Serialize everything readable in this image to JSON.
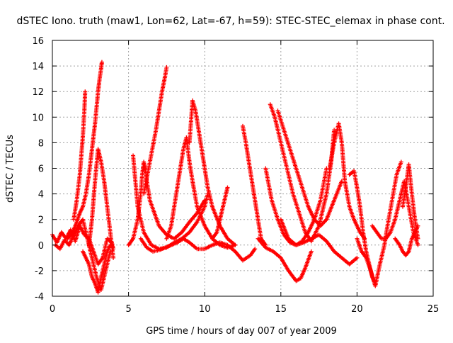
{
  "chart_data": {
    "type": "scatter",
    "title": "dSTEC Iono. truth (maw1, Lon=62, Lat=-67, h=59): STEC-STEC_elemax in phase cont.",
    "xlabel": "GPS time / hours of day 007 of year 2009",
    "ylabel": "dSTEC  / TECUs",
    "xlim": [
      0,
      25
    ],
    "ylim": [
      -4,
      16
    ],
    "x_ticks": [
      0,
      5,
      10,
      15,
      20,
      25
    ],
    "y_ticks": [
      -4,
      -2,
      0,
      2,
      4,
      6,
      8,
      10,
      12,
      14,
      16
    ],
    "grid": true,
    "marker": "+",
    "color": "#ff0000",
    "series": [
      {
        "x": [
          0.0,
          0.3,
          0.6,
          0.9,
          1.2,
          1.5,
          1.8,
          2.1,
          2.4,
          2.7,
          3.0,
          3.3,
          3.6,
          3.9,
          4.0
        ],
        "y": [
          0.8,
          0.2,
          1.0,
          0.5,
          1.2,
          0.3,
          1.5,
          0.8,
          0.5,
          -0.5,
          -1.5,
          -1.0,
          0.5,
          0.2,
          -0.3
        ]
      },
      {
        "x": [
          0.2,
          0.5,
          0.8,
          1.1,
          1.4,
          1.7,
          2.0,
          2.3,
          2.6,
          2.9,
          3.2,
          3.5,
          3.8
        ],
        "y": [
          0.0,
          -0.3,
          0.4,
          0.0,
          0.8,
          1.5,
          2.0,
          0.5,
          -1.0,
          -2.5,
          -3.5,
          -2.0,
          -0.5
        ]
      },
      {
        "x": [
          1.4,
          1.6,
          1.8,
          1.9,
          2.0,
          2.1,
          2.15
        ],
        "y": [
          2.0,
          3.5,
          5.5,
          7.0,
          8.5,
          10.5,
          12.0
        ]
      },
      {
        "x": [
          1.0,
          1.2,
          1.4,
          1.6,
          1.8,
          2.0,
          2.2,
          2.4,
          2.6,
          2.8,
          3.0,
          3.1,
          3.2,
          3.25
        ],
        "y": [
          0.5,
          0.8,
          1.2,
          1.8,
          2.5,
          3.0,
          4.0,
          5.5,
          7.5,
          9.5,
          12.0,
          13.0,
          13.8,
          14.3
        ]
      },
      {
        "x": [
          2.4,
          2.6,
          2.8,
          3.0,
          3.2,
          3.4,
          3.6,
          3.8,
          4.0
        ],
        "y": [
          0.0,
          2.0,
          5.0,
          7.5,
          6.5,
          5.0,
          3.0,
          1.0,
          -1.0
        ]
      },
      {
        "x": [
          2.0,
          2.2,
          2.4,
          2.6,
          2.8,
          3.0,
          3.2,
          3.4,
          3.6,
          3.8
        ],
        "y": [
          -0.5,
          -1.0,
          -1.5,
          -2.5,
          -3.0,
          -3.7,
          -2.5,
          -1.5,
          -0.5,
          0.0
        ]
      },
      {
        "x": [
          5.0,
          5.3,
          5.6,
          5.8,
          5.9,
          6.0,
          6.1,
          6.2,
          6.4,
          6.7,
          7.0,
          7.5,
          8.0,
          8.5,
          9.0,
          9.5,
          10.0
        ],
        "y": [
          0.0,
          0.5,
          2.0,
          4.0,
          5.5,
          6.5,
          6.0,
          5.0,
          3.5,
          2.5,
          1.5,
          0.8,
          0.5,
          1.0,
          1.8,
          2.5,
          3.5
        ]
      },
      {
        "x": [
          5.3,
          5.6,
          6.0,
          6.5,
          7.0,
          7.5,
          8.0,
          8.5,
          9.0,
          9.5,
          10.0,
          10.2
        ],
        "y": [
          7.0,
          3.0,
          1.0,
          0.0,
          -0.3,
          -0.2,
          0.2,
          0.5,
          1.0,
          1.8,
          3.0,
          4.0
        ]
      },
      {
        "x": [
          6.0,
          6.4,
          6.8,
          7.0,
          7.2,
          7.4,
          7.5
        ],
        "y": [
          4.0,
          6.5,
          9.0,
          10.5,
          12.0,
          13.2,
          13.9
        ]
      },
      {
        "x": [
          5.8,
          6.2,
          6.6,
          7.0,
          7.4,
          7.8,
          8.2,
          8.6,
          9.0,
          9.5,
          10.0,
          10.5,
          11.0,
          11.5,
          12.0,
          12.5,
          13.0,
          13.3
        ],
        "y": [
          0.5,
          -0.2,
          -0.5,
          -0.4,
          -0.2,
          0.0,
          0.2,
          0.5,
          0.2,
          -0.3,
          -0.3,
          0.0,
          0.2,
          0.0,
          -0.5,
          -1.2,
          -0.8,
          -0.3
        ]
      },
      {
        "x": [
          7.5,
          7.8,
          8.0,
          8.2,
          8.4,
          8.6,
          8.8,
          9.0,
          9.2,
          9.5,
          10.0,
          10.5,
          11.0,
          11.5,
          12.0
        ],
        "y": [
          0.5,
          1.5,
          3.0,
          4.5,
          6.0,
          7.5,
          8.4,
          6.5,
          5.0,
          3.0,
          1.5,
          0.5,
          0.0,
          -0.2,
          0.0
        ]
      },
      {
        "x": [
          9.0,
          9.2,
          9.4,
          9.6,
          9.8,
          10.0,
          10.2,
          10.5,
          11.0,
          11.5,
          12.0
        ],
        "y": [
          8.0,
          11.3,
          10.5,
          9.0,
          7.5,
          6.0,
          4.5,
          3.0,
          1.5,
          0.5,
          0.0
        ]
      },
      {
        "x": [
          10.5,
          10.8,
          11.0,
          11.2,
          11.4,
          11.5
        ],
        "y": [
          0.5,
          1.0,
          2.0,
          3.0,
          4.0,
          4.5
        ]
      },
      {
        "x": [
          12.5,
          12.7,
          12.9,
          13.1,
          13.3,
          13.5,
          13.7,
          14.0
        ],
        "y": [
          9.3,
          8.0,
          6.5,
          5.0,
          3.5,
          2.0,
          0.5,
          0.0
        ]
      },
      {
        "x": [
          13.5,
          14.0,
          14.5,
          15.0,
          15.5,
          16.0,
          16.3,
          16.6,
          17.0
        ],
        "y": [
          0.5,
          -0.2,
          -0.5,
          -1.0,
          -2.0,
          -2.8,
          -2.6,
          -1.8,
          -0.5
        ]
      },
      {
        "x": [
          14.0,
          14.4,
          14.8,
          15.2,
          15.6,
          16.0,
          16.4,
          16.8,
          17.2,
          17.6,
          18.0
        ],
        "y": [
          6.0,
          3.5,
          2.0,
          0.8,
          0.2,
          0.0,
          0.3,
          1.0,
          2.0,
          3.5,
          6.0
        ]
      },
      {
        "x": [
          14.3,
          14.6,
          15.0,
          15.4,
          15.8,
          16.2,
          16.6,
          17.0,
          17.5,
          18.0,
          18.3,
          18.5
        ],
        "y": [
          11.0,
          10.0,
          8.0,
          6.0,
          4.0,
          2.5,
          1.0,
          0.3,
          1.5,
          4.0,
          6.5,
          9.0
        ]
      },
      {
        "x": [
          14.8,
          15.2,
          15.6,
          16.0,
          16.4,
          16.8,
          17.2,
          17.6,
          18.0,
          18.5,
          19.0
        ],
        "y": [
          10.5,
          9.0,
          7.5,
          6.0,
          4.5,
          3.0,
          2.0,
          1.5,
          2.0,
          3.5,
          5.0
        ]
      },
      {
        "x": [
          15.0,
          15.5,
          16.0,
          16.5,
          17.0,
          17.5,
          18.0,
          18.5,
          19.0,
          19.5,
          20.0
        ],
        "y": [
          2.0,
          0.5,
          0.0,
          0.2,
          0.5,
          0.8,
          0.3,
          -0.5,
          -1.0,
          -1.5,
          -1.0
        ]
      },
      {
        "x": [
          18.2,
          18.5,
          18.8,
          19.0,
          19.2,
          19.5,
          19.8,
          20.0,
          20.2,
          20.5
        ],
        "y": [
          6.0,
          8.0,
          9.5,
          8.0,
          5.0,
          3.0,
          2.0,
          1.5,
          1.0,
          0.5
        ]
      },
      {
        "x": [
          19.5,
          19.8,
          20.0,
          20.2,
          20.4,
          20.6,
          20.8,
          21.0,
          21.2
        ],
        "y": [
          5.5,
          5.8,
          4.5,
          3.0,
          1.0,
          -0.5,
          -1.5,
          -2.5,
          -3.0
        ]
      },
      {
        "x": [
          20.0,
          20.3,
          20.6,
          20.9,
          21.2,
          21.5,
          21.8,
          22.0,
          22.3,
          22.6,
          22.9
        ],
        "y": [
          0.5,
          -0.5,
          -1.0,
          -2.0,
          -3.2,
          -1.5,
          0.0,
          1.5,
          3.5,
          5.5,
          6.5
        ]
      },
      {
        "x": [
          21.0,
          21.3,
          21.6,
          21.9,
          22.2,
          22.5,
          22.8,
          23.1,
          23.4,
          23.7,
          24.0
        ],
        "y": [
          1.5,
          1.0,
          0.5,
          0.5,
          1.0,
          2.0,
          3.5,
          5.0,
          3.0,
          1.0,
          0.0
        ]
      },
      {
        "x": [
          22.5,
          22.8,
          23.0,
          23.2,
          23.4,
          23.6,
          23.8,
          24.0
        ],
        "y": [
          0.5,
          0.0,
          -0.5,
          -0.8,
          -0.5,
          0.5,
          1.0,
          1.5
        ]
      },
      {
        "x": [
          23.0,
          23.2,
          23.4,
          23.6,
          23.8,
          24.0
        ],
        "y": [
          3.0,
          4.5,
          6.3,
          4.0,
          2.0,
          0.5
        ]
      }
    ]
  }
}
